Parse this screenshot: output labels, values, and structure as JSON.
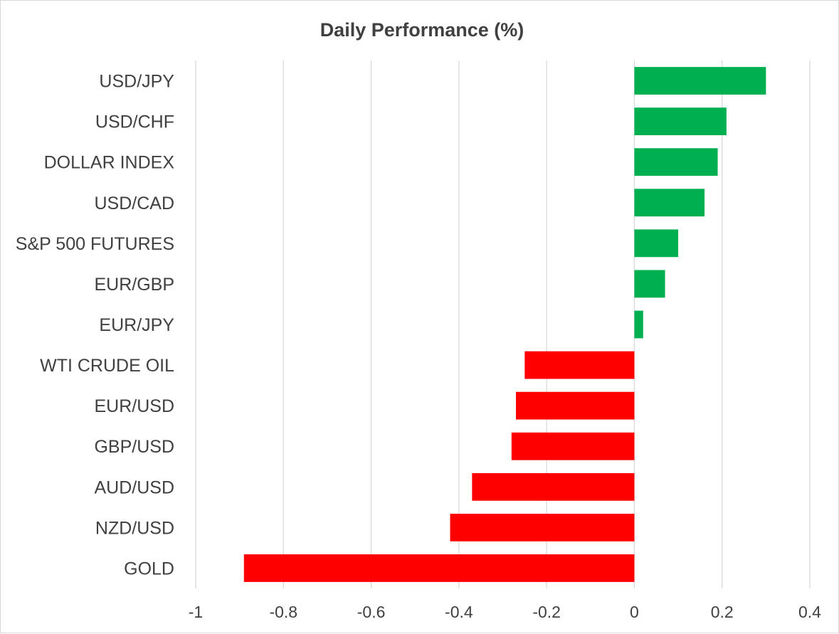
{
  "chart_data": {
    "type": "bar",
    "orientation": "horizontal",
    "title": "Daily Performance (%)",
    "xlabel": "",
    "ylabel": "",
    "categories": [
      "USD/JPY",
      "USD/CHF",
      "DOLLAR INDEX",
      "USD/CAD",
      "S&P 500 FUTURES",
      "EUR/GBP",
      "EUR/JPY",
      "WTI CRUDE OIL",
      "EUR/USD",
      "GBP/USD",
      "AUD/USD",
      "NZD/USD",
      "GOLD"
    ],
    "values": [
      0.3,
      0.21,
      0.19,
      0.16,
      0.1,
      0.07,
      0.02,
      -0.25,
      -0.27,
      -0.28,
      -0.37,
      -0.42,
      -0.89
    ],
    "xlim": [
      -1,
      0.4
    ],
    "xticks": [
      -1,
      -0.8,
      -0.6,
      -0.4,
      -0.2,
      0,
      0.2,
      0.4
    ],
    "xtick_labels": [
      "-1",
      "-0.8",
      "-0.6",
      "-0.4",
      "-0.2",
      "0",
      "0.2",
      "0.4"
    ],
    "grid": "vertical",
    "legend": "none",
    "colors": {
      "positive": "#00b050",
      "negative": "#ff0000",
      "grid": "#d9d9d9",
      "text": "#404040"
    }
  }
}
